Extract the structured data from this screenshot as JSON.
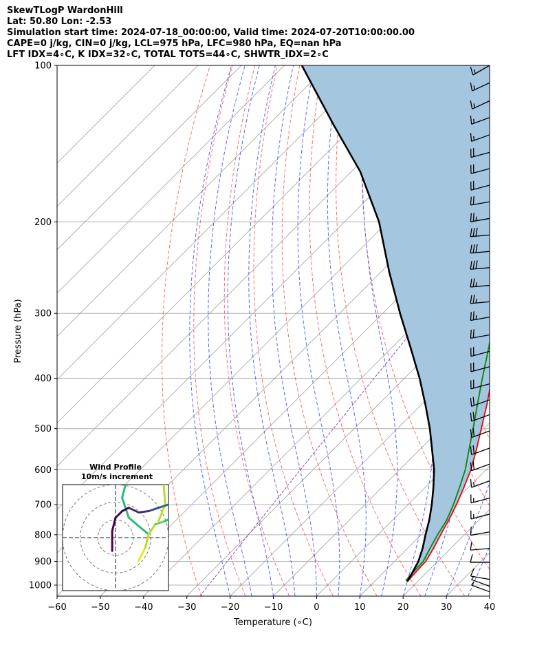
{
  "header": {
    "line1": "SkewTLogP WardonHill",
    "line2": "Lat: 50.80   Lon: -2.53",
    "line3": "Simulation start time: 2024-07-18_00:00:00, Valid time: 2024-07-20T10:00:00.00",
    "line4": "CAPE=0 j/kg, CIN=0 j/kg, LCL=975 hPa, LFC=980 hPa, EQ=nan hPa",
    "line5": "LFT IDX=4∘C, K IDX=32∘C, TOTAL TOTS=44∘C, SHWTR_IDX=2∘C"
  },
  "chart_data": {
    "type": "line",
    "xlabel": "Temperature (∘C)",
    "ylabel": "Pressure (hPa)",
    "xlim": [
      -60,
      40
    ],
    "ylim": [
      1050,
      100
    ],
    "log_y": true,
    "skew": true,
    "x_ticks": [
      -60,
      -50,
      -40,
      -30,
      -20,
      -10,
      0,
      10,
      20,
      30,
      40
    ],
    "y_ticks": [
      1000,
      900,
      800,
      700,
      600,
      500,
      400,
      300,
      200,
      100
    ],
    "grid": true,
    "series": [
      {
        "role": "temperature",
        "color": "#dd1111",
        "points": [
          [
            17.6,
            980
          ],
          [
            17.4,
            950
          ],
          [
            17.2,
            900
          ],
          [
            16.0,
            850
          ],
          [
            14.5,
            800
          ],
          [
            13.0,
            750
          ],
          [
            11.2,
            700
          ],
          [
            9.0,
            650
          ],
          [
            6.5,
            600
          ],
          [
            3.2,
            550
          ],
          [
            -0.6,
            500
          ],
          [
            -4.8,
            450
          ],
          [
            -9.8,
            400
          ],
          [
            -15.3,
            350
          ],
          [
            -21.5,
            300
          ],
          [
            -28.5,
            260
          ],
          [
            -27.5,
            250
          ],
          [
            -28.0,
            225
          ],
          [
            -31.5,
            200
          ],
          [
            -33.5,
            185
          ],
          [
            -38.0,
            170
          ],
          [
            -42.0,
            155
          ],
          [
            -44.5,
            145
          ],
          [
            -48.8,
            130
          ],
          [
            -53.5,
            120
          ],
          [
            -58.5,
            110
          ],
          [
            -62.0,
            100
          ]
        ]
      },
      {
        "role": "dewpoint",
        "color": "#118811",
        "points": [
          [
            17.0,
            980
          ],
          [
            16.8,
            950
          ],
          [
            16.6,
            900
          ],
          [
            15.2,
            850
          ],
          [
            13.8,
            800
          ],
          [
            12.5,
            750
          ],
          [
            10.5,
            700
          ],
          [
            8.0,
            650
          ],
          [
            5.2,
            600
          ],
          [
            1.5,
            550
          ],
          [
            -2.5,
            500
          ],
          [
            -7.0,
            450
          ],
          [
            -12.0,
            400
          ],
          [
            -17.5,
            350
          ],
          [
            -24.0,
            300
          ],
          [
            -30.0,
            260
          ],
          [
            -28.5,
            240
          ],
          [
            -29.5,
            225
          ],
          [
            -34.0,
            205
          ],
          [
            -43.0,
            190
          ],
          [
            -49.0,
            180
          ],
          [
            -51.0,
            175
          ],
          [
            -59.0,
            150
          ],
          [
            -66.0,
            130
          ],
          [
            -72.0,
            115
          ],
          [
            -79.0,
            100
          ]
        ]
      },
      {
        "role": "parcel",
        "color": "#000000",
        "points": [
          [
            17.6,
            985
          ],
          [
            16.8,
            950
          ],
          [
            15.5,
            900
          ],
          [
            13.5,
            850
          ],
          [
            11.0,
            800
          ],
          [
            8.5,
            750
          ],
          [
            5.5,
            700
          ],
          [
            2.0,
            650
          ],
          [
            -2.0,
            600
          ],
          [
            -7.0,
            550
          ],
          [
            -12.5,
            500
          ],
          [
            -19.0,
            450
          ],
          [
            -26.5,
            400
          ],
          [
            -35.5,
            350
          ],
          [
            -46.0,
            300
          ],
          [
            -58.0,
            250
          ],
          [
            -72.0,
            200
          ],
          [
            -88.0,
            160
          ],
          [
            -105.0,
            130
          ],
          [
            -126.0,
            100
          ]
        ]
      }
    ],
    "wind_barbs": {
      "color": "#000000",
      "levels": [
        {
          "p": 1030,
          "dir": 290,
          "kt": 5
        },
        {
          "p": 1005,
          "dir": 290,
          "kt": 5
        },
        {
          "p": 975,
          "dir": 280,
          "kt": 10
        },
        {
          "p": 905,
          "dir": 270,
          "kt": 10
        },
        {
          "p": 850,
          "dir": 265,
          "kt": 10
        },
        {
          "p": 790,
          "dir": 260,
          "kt": 10
        },
        {
          "p": 730,
          "dir": 255,
          "kt": 15
        },
        {
          "p": 680,
          "dir": 255,
          "kt": 15
        },
        {
          "p": 630,
          "dir": 250,
          "kt": 15
        },
        {
          "p": 585,
          "dir": 250,
          "kt": 20
        },
        {
          "p": 545,
          "dir": 250,
          "kt": 20
        },
        {
          "p": 505,
          "dir": 250,
          "kt": 20
        },
        {
          "p": 470,
          "dir": 250,
          "kt": 20
        },
        {
          "p": 440,
          "dir": 250,
          "kt": 20
        },
        {
          "p": 410,
          "dir": 255,
          "kt": 20
        },
        {
          "p": 380,
          "dir": 255,
          "kt": 20
        },
        {
          "p": 355,
          "dir": 255,
          "kt": 20
        },
        {
          "p": 330,
          "dir": 260,
          "kt": 20
        },
        {
          "p": 305,
          "dir": 260,
          "kt": 25
        },
        {
          "p": 285,
          "dir": 265,
          "kt": 25
        },
        {
          "p": 265,
          "dir": 265,
          "kt": 25
        },
        {
          "p": 245,
          "dir": 265,
          "kt": 30
        },
        {
          "p": 228,
          "dir": 265,
          "kt": 30
        },
        {
          "p": 212,
          "dir": 265,
          "kt": 30
        },
        {
          "p": 197,
          "dir": 260,
          "kt": 25
        },
        {
          "p": 183,
          "dir": 260,
          "kt": 20
        },
        {
          "p": 170,
          "dir": 255,
          "kt": 20
        },
        {
          "p": 158,
          "dir": 255,
          "kt": 20
        },
        {
          "p": 147,
          "dir": 255,
          "kt": 20
        },
        {
          "p": 136,
          "dir": 250,
          "kt": 15
        },
        {
          "p": 126,
          "dir": 250,
          "kt": 15
        },
        {
          "p": 117,
          "dir": 245,
          "kt": 15
        },
        {
          "p": 108,
          "dir": 245,
          "kt": 15
        },
        {
          "p": 100,
          "dir": 240,
          "kt": 15
        }
      ]
    },
    "hodograph": {
      "title": "Wind Profile",
      "subtitle": "10m/s increment",
      "rings_ms": [
        10,
        20,
        30
      ],
      "range_ms": 24,
      "points": [
        {
          "u": 3.5,
          "v": -3.5,
          "c": "#f5e31a"
        },
        {
          "u": 4.5,
          "v": -1.5,
          "c": "#f5e31a"
        },
        {
          "u": 5.0,
          "v": 0.5,
          "c": "#b5de2b"
        },
        {
          "u": 6.0,
          "v": 2.0,
          "c": "#b5de2b"
        },
        {
          "u": 7.5,
          "v": 2.5,
          "c": "#6ece58"
        },
        {
          "u": 8.5,
          "v": 3.0,
          "c": "#35b779"
        },
        {
          "u": 9.0,
          "v": 4.5,
          "c": "#1f9e89"
        },
        {
          "u": 8.0,
          "v": 5.0,
          "c": "#26828e"
        },
        {
          "u": 6.5,
          "v": 4.5,
          "c": "#31688e"
        },
        {
          "u": 5.0,
          "v": 4.0,
          "c": "#3e4a89"
        },
        {
          "u": 3.5,
          "v": 3.8,
          "c": "#482878"
        },
        {
          "u": 2.0,
          "v": 4.5,
          "c": "#482878"
        },
        {
          "u": 1.0,
          "v": 4.0,
          "c": "#440154"
        },
        {
          "u": 0.0,
          "v": 3.0,
          "c": "#440154"
        },
        {
          "u": -0.5,
          "v": 1.0,
          "c": "#440154"
        },
        {
          "u": -0.5,
          "v": -2.0,
          "c": "#440154"
        }
      ],
      "upper_points": [
        {
          "u": 5.0,
          "v": 0.5,
          "c": "#35b779"
        },
        {
          "u": 2.0,
          "v": 3.0,
          "c": "#35b779"
        },
        {
          "u": 1.0,
          "v": 6.0,
          "c": "#35b779"
        },
        {
          "u": 1.5,
          "v": 8.0,
          "c": "#35b779"
        },
        {
          "u": 3.5,
          "v": 9.5,
          "c": "#4ac16d"
        },
        {
          "u": 5.5,
          "v": 11.0,
          "c": "#4ac16d"
        },
        {
          "u": 7.0,
          "v": 12.0,
          "c": "#6ece58"
        },
        {
          "u": 7.2,
          "v": 9.0,
          "c": "#9fda3a"
        },
        {
          "u": 7.5,
          "v": 5.0,
          "c": "#b5de2b"
        },
        {
          "u": 6.5,
          "v": 2.5,
          "c": "#c2df23"
        }
      ]
    }
  }
}
